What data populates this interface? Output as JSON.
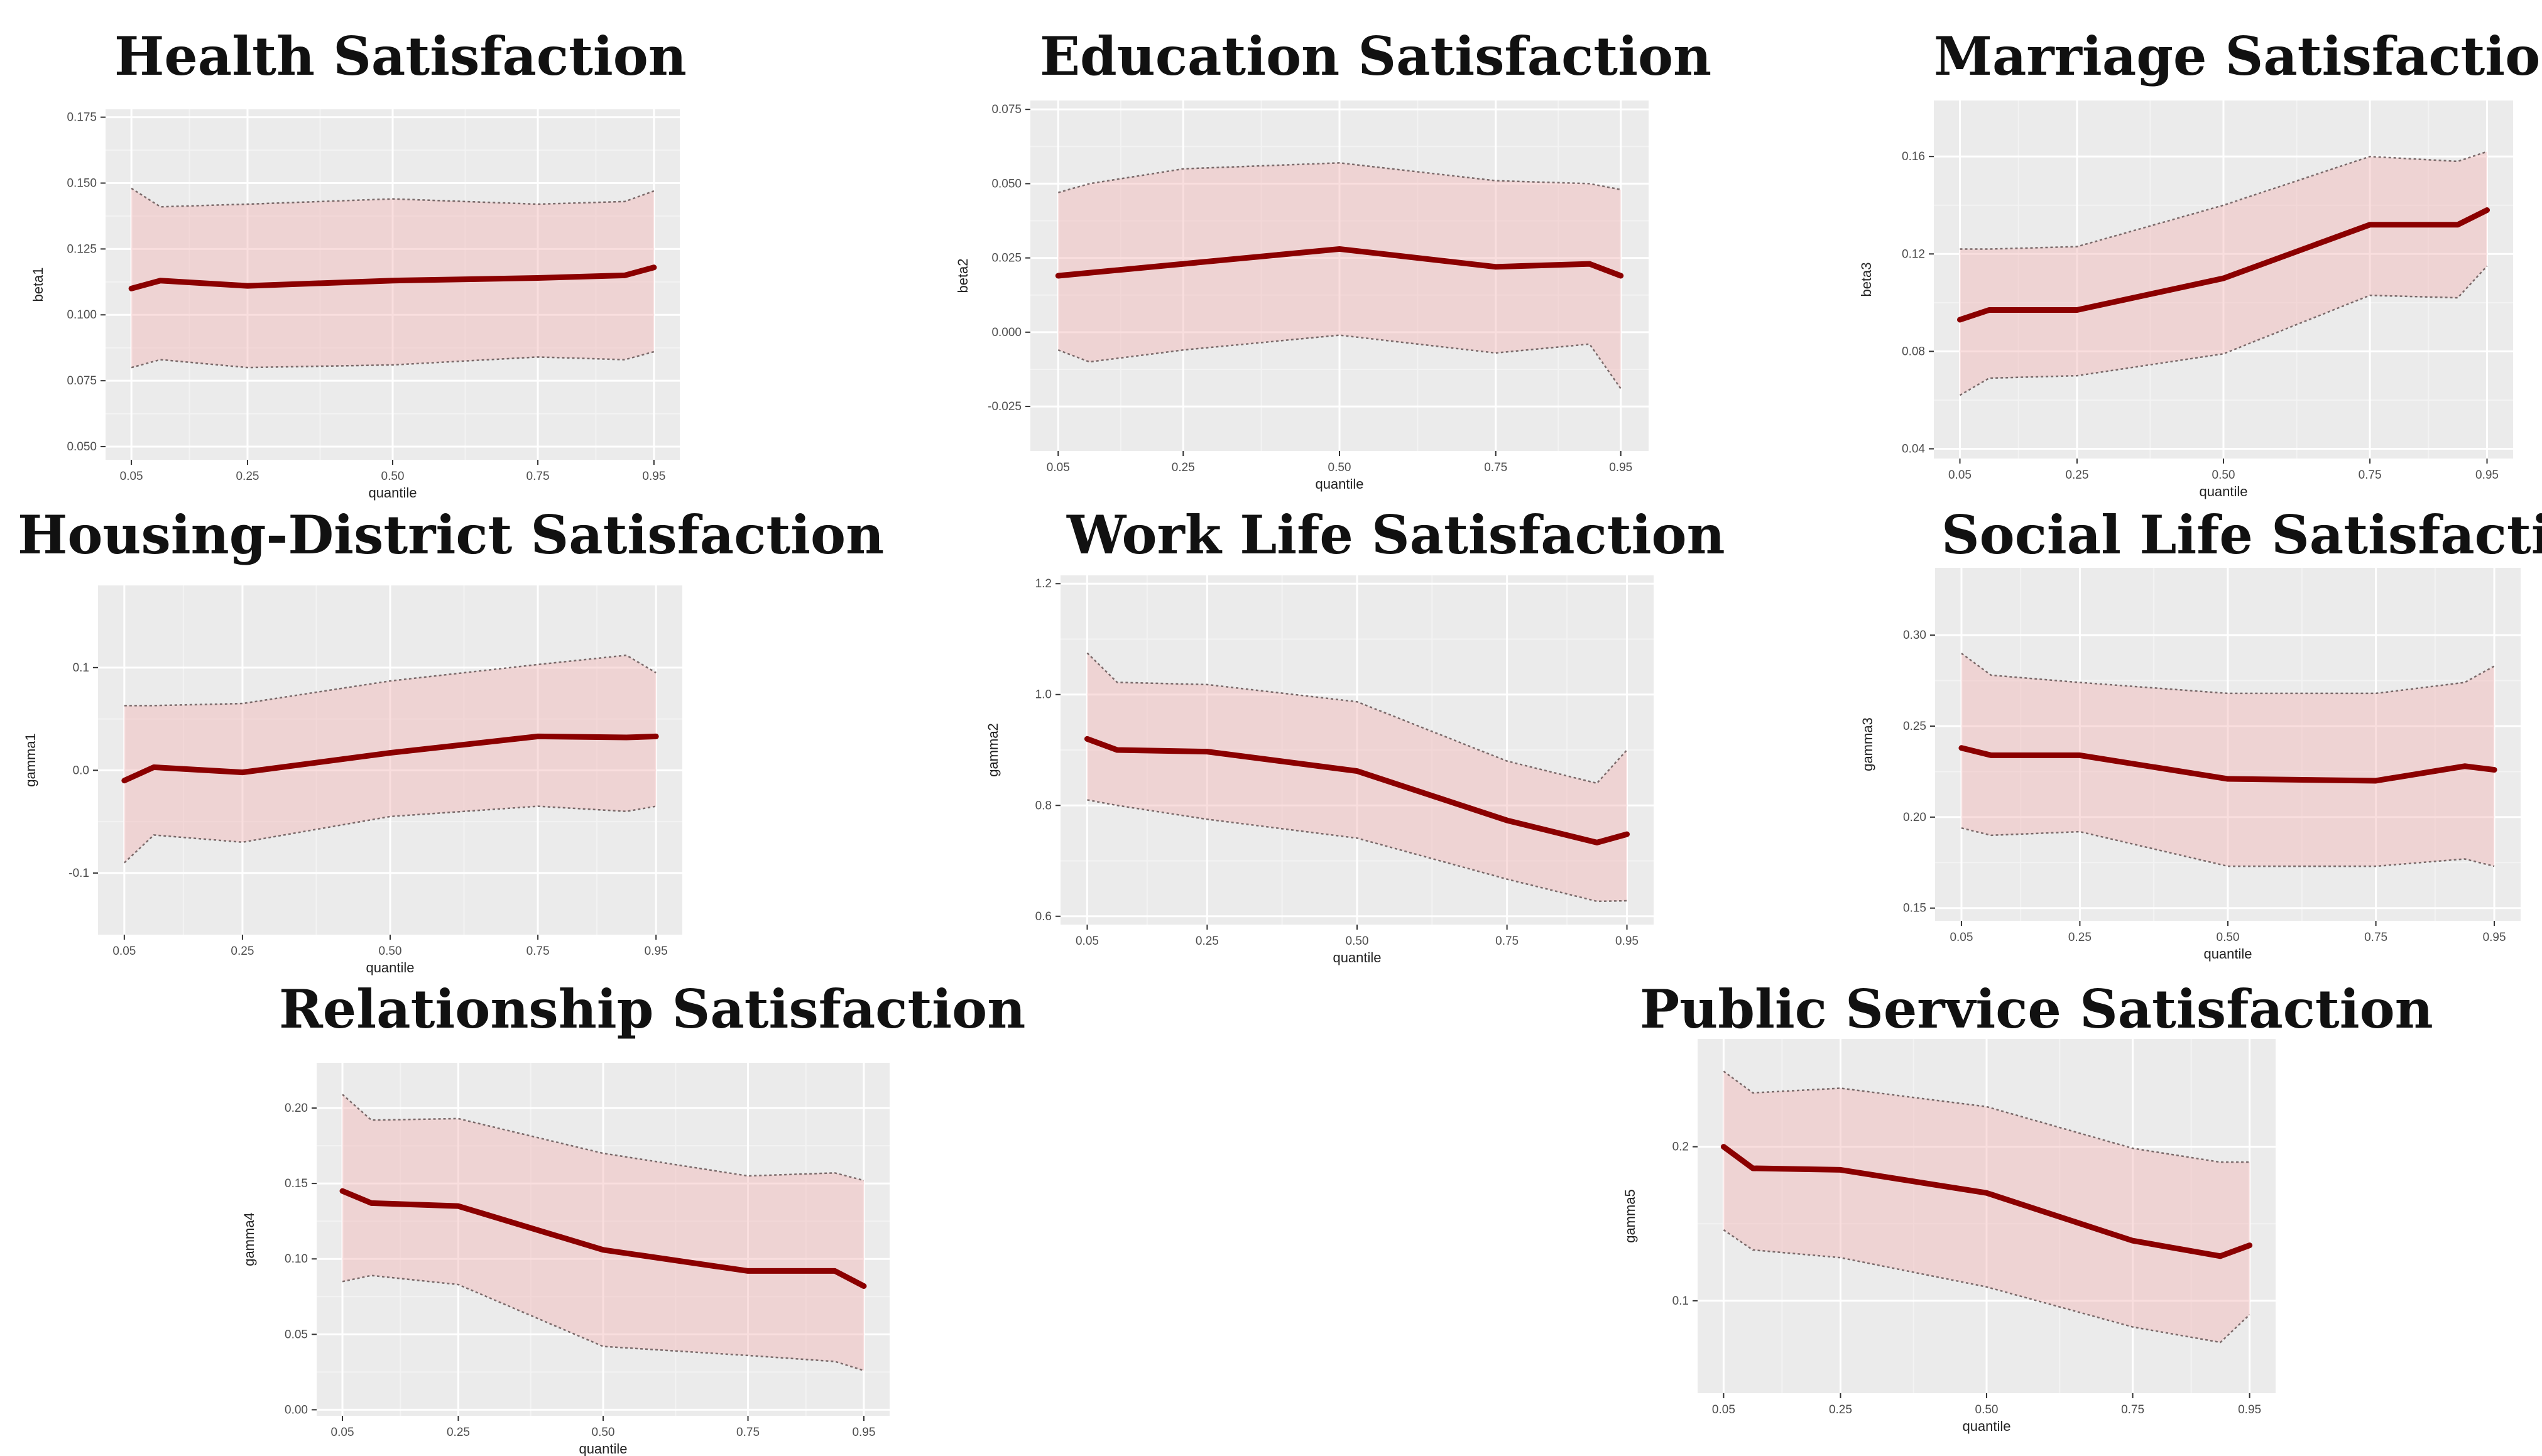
{
  "colors": {
    "panel_bg": "#ebebeb",
    "grid_major": "#ffffff",
    "grid_minor": "#f3f3f3",
    "band_fill": "#f2b5b5",
    "band_line": "#7a6a6a",
    "line": "#8b0000",
    "tick_text": "#4d4d4d",
    "axis_title": "#222222"
  },
  "chart_data": [
    {
      "type": "line",
      "title": "Health Satisfaction",
      "xlabel": "quantile",
      "ylabel": "beta1",
      "xlim": [
        0.05,
        0.95
      ],
      "ylim": [
        0.045,
        0.178
      ],
      "xticks": [
        0.05,
        0.25,
        0.5,
        0.75,
        0.95
      ],
      "xtick_labels": [
        "0.05",
        "0.25",
        "0.50",
        "0.75",
        "0.95"
      ],
      "yticks": [
        0.05,
        0.075,
        0.1,
        0.125,
        0.15,
        0.175
      ],
      "ytick_labels": [
        "0.050",
        "0.075",
        "0.100",
        "0.125",
        "0.150",
        "0.175"
      ],
      "x": [
        0.05,
        0.1,
        0.25,
        0.5,
        0.75,
        0.9,
        0.95
      ],
      "estimate": [
        0.11,
        0.113,
        0.111,
        0.113,
        0.114,
        0.115,
        0.118
      ],
      "lower": [
        0.08,
        0.083,
        0.08,
        0.081,
        0.084,
        0.083,
        0.086
      ],
      "upper": [
        0.148,
        0.141,
        0.142,
        0.144,
        0.142,
        0.143,
        0.147
      ]
    },
    {
      "type": "line",
      "title": "Education Satisfaction",
      "xlabel": "quantile",
      "ylabel": "beta2",
      "xlim": [
        0.05,
        0.95
      ],
      "ylim": [
        -0.04,
        0.078
      ],
      "xticks": [
        0.05,
        0.25,
        0.5,
        0.75,
        0.95
      ],
      "xtick_labels": [
        "0.05",
        "0.25",
        "0.50",
        "0.75",
        "0.95"
      ],
      "yticks": [
        -0.025,
        0,
        0.025,
        0.05,
        0.075
      ],
      "ytick_labels": [
        "-0.025",
        "0.000",
        "0.025",
        "0.050",
        "0.075"
      ],
      "x": [
        0.05,
        0.1,
        0.25,
        0.5,
        0.75,
        0.9,
        0.95
      ],
      "estimate": [
        0.019,
        0.02,
        0.023,
        0.028,
        0.022,
        0.023,
        0.019
      ],
      "lower": [
        -0.006,
        -0.01,
        -0.006,
        -0.001,
        -0.007,
        -0.004,
        -0.019
      ],
      "upper": [
        0.047,
        0.05,
        0.055,
        0.057,
        0.051,
        0.05,
        0.048
      ]
    },
    {
      "type": "line",
      "title": "Marriage Satisfaction",
      "xlabel": "quantile",
      "ylabel": "beta3",
      "xlim": [
        0.05,
        0.95
      ],
      "ylim": [
        0.036,
        0.183
      ],
      "xticks": [
        0.05,
        0.25,
        0.5,
        0.75,
        0.95
      ],
      "xtick_labels": [
        "0.05",
        "0.25",
        "0.50",
        "0.75",
        "0.95"
      ],
      "yticks": [
        0.04,
        0.08,
        0.12,
        0.16
      ],
      "ytick_labels": [
        "0.04",
        "0.08",
        "0.12",
        "0.16"
      ],
      "x": [
        0.05,
        0.1,
        0.25,
        0.5,
        0.75,
        0.9,
        0.95
      ],
      "estimate": [
        0.093,
        0.097,
        0.097,
        0.11,
        0.132,
        0.132,
        0.138
      ],
      "lower": [
        0.062,
        0.069,
        0.07,
        0.079,
        0.103,
        0.102,
        0.115
      ],
      "upper": [
        0.122,
        0.122,
        0.123,
        0.14,
        0.16,
        0.158,
        0.162
      ]
    },
    {
      "type": "line",
      "title": "Housing-District Satisfaction",
      "xlabel": "quantile",
      "ylabel": "gamma1",
      "xlim": [
        0.05,
        0.95
      ],
      "ylim": [
        -0.16,
        0.18
      ],
      "xticks": [
        0.05,
        0.25,
        0.5,
        0.75,
        0.95
      ],
      "xtick_labels": [
        "0.05",
        "0.25",
        "0.50",
        "0.75",
        "0.95"
      ],
      "yticks": [
        -0.1,
        0,
        0.1
      ],
      "ytick_labels": [
        "-0.1",
        "0.0",
        "0.1"
      ],
      "x": [
        0.05,
        0.1,
        0.25,
        0.5,
        0.75,
        0.9,
        0.95
      ],
      "estimate": [
        -0.01,
        0.003,
        -0.002,
        0.017,
        0.033,
        0.032,
        0.033
      ],
      "lower": [
        -0.09,
        -0.063,
        -0.07,
        -0.045,
        -0.035,
        -0.04,
        -0.035
      ],
      "upper": [
        0.063,
        0.063,
        0.065,
        0.087,
        0.103,
        0.112,
        0.095
      ]
    },
    {
      "type": "line",
      "title": "Work Life Satisfaction",
      "xlabel": "quantile",
      "ylabel": "gamma2",
      "xlim": [
        0.05,
        0.95
      ],
      "ylim": [
        0.585,
        1.215
      ],
      "xticks": [
        0.05,
        0.25,
        0.5,
        0.75,
        0.95
      ],
      "xtick_labels": [
        "0.05",
        "0.25",
        "0.50",
        "0.75",
        "0.95"
      ],
      "yticks": [
        0.6,
        0.8,
        1.0,
        1.2
      ],
      "ytick_labels": [
        "0.6",
        "0.8",
        "1.0",
        "1.2"
      ],
      "x": [
        0.05,
        0.1,
        0.25,
        0.5,
        0.75,
        0.9,
        0.95
      ],
      "estimate": [
        0.92,
        0.9,
        0.897,
        0.862,
        0.773,
        0.733,
        0.748
      ],
      "lower": [
        0.81,
        0.8,
        0.775,
        0.741,
        0.667,
        0.627,
        0.628
      ],
      "upper": [
        1.075,
        1.022,
        1.018,
        0.987,
        0.88,
        0.84,
        0.9
      ]
    },
    {
      "type": "line",
      "title": "Social Life Satisfaction",
      "xlabel": "quantile",
      "ylabel": "gamma3",
      "xlim": [
        0.05,
        0.95
      ],
      "ylim": [
        0.143,
        0.337
      ],
      "xticks": [
        0.05,
        0.25,
        0.5,
        0.75,
        0.95
      ],
      "xtick_labels": [
        "0.05",
        "0.25",
        "0.50",
        "0.75",
        "0.95"
      ],
      "yticks": [
        0.15,
        0.2,
        0.25,
        0.3
      ],
      "ytick_labels": [
        "0.15",
        "0.20",
        "0.25",
        "0.30"
      ],
      "x": [
        0.05,
        0.1,
        0.25,
        0.5,
        0.75,
        0.9,
        0.95
      ],
      "estimate": [
        0.238,
        0.234,
        0.234,
        0.221,
        0.22,
        0.228,
        0.226
      ],
      "lower": [
        0.194,
        0.19,
        0.192,
        0.173,
        0.173,
        0.177,
        0.173
      ],
      "upper": [
        0.29,
        0.278,
        0.274,
        0.268,
        0.268,
        0.274,
        0.283
      ]
    },
    {
      "type": "line",
      "title": "Relationship Satisfaction",
      "xlabel": "quantile",
      "ylabel": "gamma4",
      "xlim": [
        0.05,
        0.95
      ],
      "ylim": [
        -0.004,
        0.23
      ],
      "xticks": [
        0.05,
        0.25,
        0.5,
        0.75,
        0.95
      ],
      "xtick_labels": [
        "0.05",
        "0.25",
        "0.50",
        "0.75",
        "0.95"
      ],
      "yticks": [
        0,
        0.05,
        0.1,
        0.15,
        0.2
      ],
      "ytick_labels": [
        "0.00",
        "0.05",
        "0.10",
        "0.15",
        "0.20"
      ],
      "x": [
        0.05,
        0.1,
        0.25,
        0.5,
        0.75,
        0.9,
        0.95
      ],
      "estimate": [
        0.145,
        0.137,
        0.135,
        0.106,
        0.092,
        0.092,
        0.082
      ],
      "lower": [
        0.085,
        0.089,
        0.083,
        0.042,
        0.036,
        0.032,
        0.026
      ],
      "upper": [
        0.209,
        0.192,
        0.193,
        0.17,
        0.155,
        0.157,
        0.152
      ]
    },
    {
      "type": "line",
      "title": "Public Service Satisfaction",
      "xlabel": "quantile",
      "ylabel": "gamma5",
      "xlim": [
        0.05,
        0.95
      ],
      "ylim": [
        0.04,
        0.27
      ],
      "xticks": [
        0.05,
        0.25,
        0.5,
        0.75,
        0.95
      ],
      "xtick_labels": [
        "0.05",
        "0.25",
        "0.50",
        "0.75",
        "0.95"
      ],
      "yticks": [
        0.1,
        0.2
      ],
      "ytick_labels": [
        "0.1",
        "0.2"
      ],
      "x": [
        0.05,
        0.1,
        0.25,
        0.5,
        0.75,
        0.9,
        0.95
      ],
      "estimate": [
        0.2,
        0.186,
        0.185,
        0.17,
        0.139,
        0.129,
        0.136
      ],
      "lower": [
        0.146,
        0.133,
        0.128,
        0.109,
        0.083,
        0.073,
        0.091
      ],
      "upper": [
        0.249,
        0.235,
        0.238,
        0.226,
        0.199,
        0.19,
        0.19
      ]
    }
  ]
}
